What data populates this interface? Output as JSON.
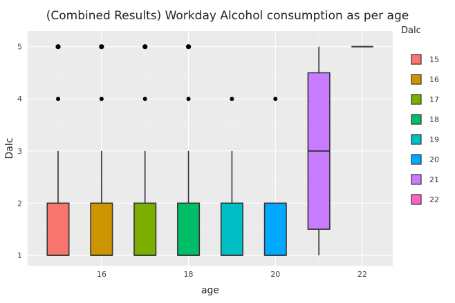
{
  "chart_data": {
    "type": "box",
    "title": "(Combined Results)  Workday Alcohol consumption as per age",
    "xlabel": "age",
    "ylabel": "Dalc",
    "xlim": [
      14.3,
      22.7
    ],
    "ylim": [
      0.8,
      5.3
    ],
    "x_ticks": [
      16,
      18,
      20,
      22
    ],
    "y_ticks": [
      1,
      2,
      3,
      4,
      5
    ],
    "grid": true,
    "legend": {
      "title": "Dalc",
      "placement": "right"
    },
    "series": [
      {
        "name": "15",
        "x": 15,
        "color": "#F8766D",
        "min": 1,
        "q1": 1,
        "median": 1,
        "q3": 2,
        "max": 3,
        "outliers": [
          4,
          5
        ]
      },
      {
        "name": "16",
        "x": 16,
        "color": "#CD9600",
        "min": 1,
        "q1": 1,
        "median": 1,
        "q3": 2,
        "max": 3,
        "outliers": [
          4,
          5
        ]
      },
      {
        "name": "17",
        "x": 17,
        "color": "#7CAE00",
        "min": 1,
        "q1": 1,
        "median": 1,
        "q3": 2,
        "max": 3,
        "outliers": [
          4,
          5
        ]
      },
      {
        "name": "18",
        "x": 18,
        "color": "#00BE67",
        "min": 1,
        "q1": 1,
        "median": 1,
        "q3": 2,
        "max": 3,
        "outliers": [
          4,
          5
        ]
      },
      {
        "name": "19",
        "x": 19,
        "color": "#00BFC4",
        "min": 1,
        "q1": 1,
        "median": 1,
        "q3": 2,
        "max": 3,
        "outliers": [
          4
        ]
      },
      {
        "name": "20",
        "x": 20,
        "color": "#00A9FF",
        "min": 1,
        "q1": 1,
        "median": 1,
        "q3": 2,
        "max": 2,
        "outliers": [
          4
        ]
      },
      {
        "name": "21",
        "x": 21,
        "color": "#C77CFF",
        "min": 1,
        "q1": 1.5,
        "median": 3,
        "q3": 4.5,
        "max": 5,
        "outliers": []
      },
      {
        "name": "22",
        "x": 22,
        "color": "#FF61CC",
        "min": 5,
        "q1": 5,
        "median": 5,
        "q3": 5,
        "max": 5,
        "outliers": []
      }
    ]
  }
}
